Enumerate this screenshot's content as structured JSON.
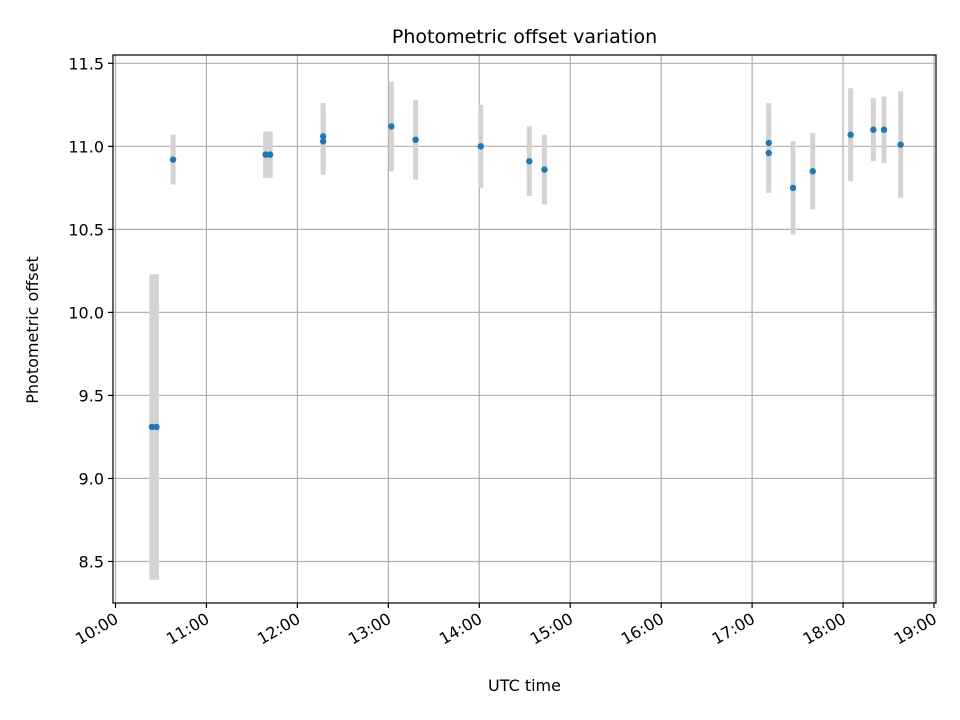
{
  "chart_data": {
    "type": "scatter",
    "title": "Photometric offset variation",
    "xlabel": "UTC time",
    "ylabel": "Photometric offset",
    "x_unit": "hours UTC",
    "xlim": [
      "10:00",
      "19:00"
    ],
    "ylim": [
      8.25,
      11.55
    ],
    "x_ticks": [
      "10:00",
      "11:00",
      "12:00",
      "13:00",
      "14:00",
      "15:00",
      "16:00",
      "17:00",
      "18:00",
      "19:00"
    ],
    "y_ticks": [
      "8.5",
      "9.0",
      "9.5",
      "10.0",
      "10.5",
      "11.0",
      "11.5"
    ],
    "grid": true,
    "point_color": "#1f77b4",
    "errorbar_color": "#d3d3d3",
    "points": [
      {
        "x": "10:24",
        "y": 9.31,
        "err": 0.92
      },
      {
        "x": "10:27",
        "y": 9.31,
        "err": 0.92
      },
      {
        "x": "10:38",
        "y": 10.92,
        "err": 0.15
      },
      {
        "x": "11:39",
        "y": 10.95,
        "err": 0.14
      },
      {
        "x": "11:42",
        "y": 10.95,
        "err": 0.14
      },
      {
        "x": "12:17",
        "y": 11.06,
        "err": 0.2
      },
      {
        "x": "12:17",
        "y": 11.03,
        "err": 0.2
      },
      {
        "x": "13:02",
        "y": 11.12,
        "err": 0.27
      },
      {
        "x": "13:18",
        "y": 11.04,
        "err": 0.24
      },
      {
        "x": "14:01",
        "y": 11.0,
        "err": 0.25
      },
      {
        "x": "14:33",
        "y": 10.91,
        "err": 0.21
      },
      {
        "x": "14:43",
        "y": 10.86,
        "err": 0.21
      },
      {
        "x": "17:11",
        "y": 10.96,
        "err": 0.24
      },
      {
        "x": "17:11",
        "y": 11.02,
        "err": 0.24
      },
      {
        "x": "17:27",
        "y": 10.75,
        "err": 0.28
      },
      {
        "x": "17:40",
        "y": 10.85,
        "err": 0.23
      },
      {
        "x": "18:05",
        "y": 11.07,
        "err": 0.28
      },
      {
        "x": "18:20",
        "y": 11.1,
        "err": 0.19
      },
      {
        "x": "18:27",
        "y": 11.1,
        "err": 0.2
      },
      {
        "x": "18:38",
        "y": 11.01,
        "err": 0.32
      }
    ]
  }
}
